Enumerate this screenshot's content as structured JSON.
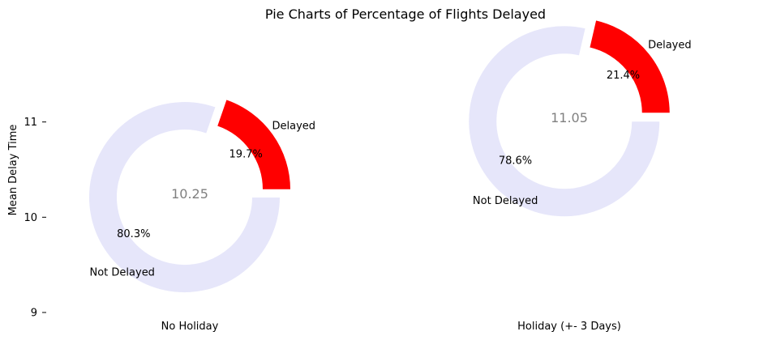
{
  "chart_data": {
    "type": "pie",
    "title": "Pie Charts of Percentage of Flights Delayed",
    "ylabel": "Mean Delay Time",
    "xlabel": "",
    "ylim": [
      9,
      12
    ],
    "y_ticks": [
      "9",
      "10",
      "11"
    ],
    "y_tick_values": [
      9,
      10,
      11
    ],
    "grid": false,
    "legend": "none",
    "slice_labels": [
      "Delayed",
      "Not Delayed"
    ],
    "slice_colors": [
      "#ff0000",
      "#e6e6fa"
    ],
    "center_text_color": "#808080",
    "pies": [
      {
        "category": "No Holiday",
        "mean_delay": 10.25,
        "mean_delay_label": "10.25",
        "slices": [
          {
            "label": "Delayed",
            "value": 19.7,
            "pct_label": "19.7%"
          },
          {
            "label": "Not Delayed",
            "value": 80.3,
            "pct_label": "80.3%"
          }
        ]
      },
      {
        "category": "Holiday (+- 3 Days)",
        "mean_delay": 11.05,
        "mean_delay_label": "11.05",
        "slices": [
          {
            "label": "Delayed",
            "value": 21.4,
            "pct_label": "21.4%"
          },
          {
            "label": "Not Delayed",
            "value": 78.6,
            "pct_label": "78.6%"
          }
        ]
      }
    ]
  }
}
